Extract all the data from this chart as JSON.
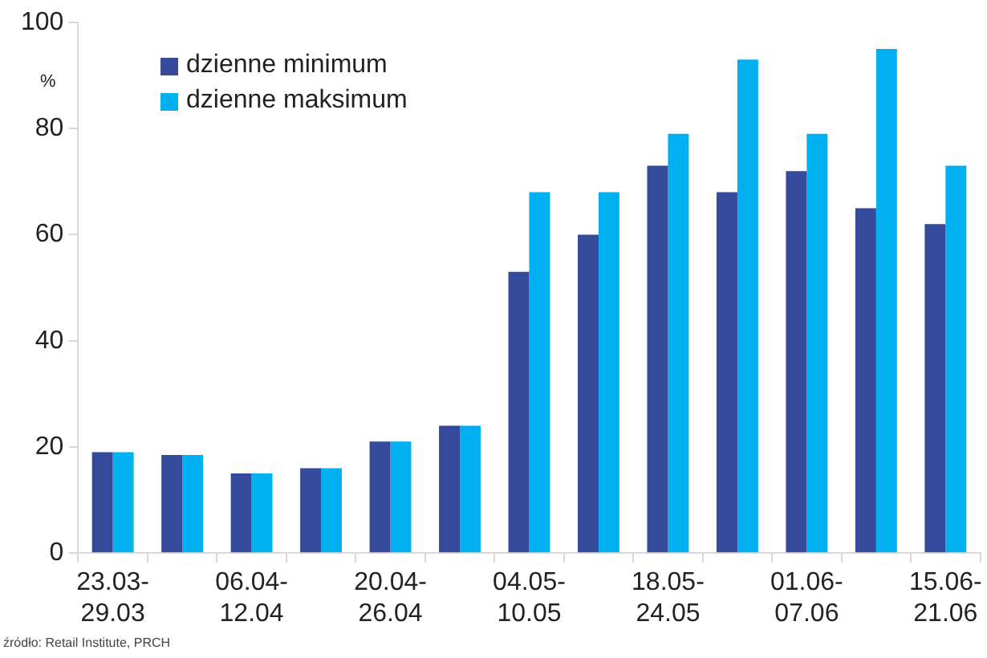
{
  "chart_data": {
    "type": "bar",
    "ylabel": "%",
    "categories": [
      "23.03-29.03",
      null,
      "06.04-12.04",
      null,
      "20.04-26.04",
      null,
      "04.05-10.05",
      null,
      "18.05-24.05",
      null,
      "01.06-07.06",
      null,
      "15.06-21.06"
    ],
    "series": [
      {
        "name": "dzienne minimum",
        "color": "#354a9a",
        "values": [
          19,
          18.5,
          15,
          16,
          21,
          24,
          53,
          60,
          73,
          68,
          72,
          65,
          62
        ]
      },
      {
        "name": "dzienne maksimum",
        "color": "#00b0f0",
        "values": [
          19,
          18.5,
          15,
          16,
          21,
          24,
          68,
          68,
          79,
          93,
          79,
          95,
          73
        ]
      }
    ],
    "ylim": [
      0,
      100
    ],
    "yticks": [
      0,
      20,
      40,
      60,
      80,
      100
    ],
    "grid": false,
    "legend": "top left",
    "annotations": [
      "źródło: Retail Institute, PRCH"
    ]
  }
}
